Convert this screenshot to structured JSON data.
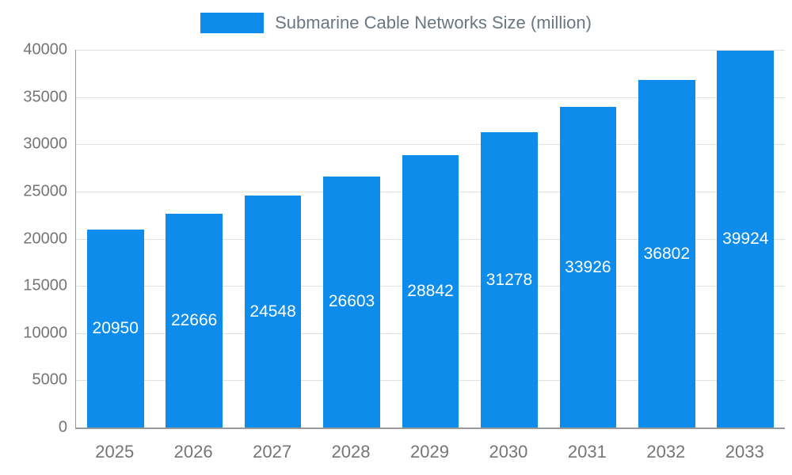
{
  "chart_data": {
    "type": "bar",
    "title": "Submarine Cable Networks Size (million)",
    "categories": [
      "2025",
      "2026",
      "2027",
      "2028",
      "2029",
      "2030",
      "2031",
      "2032",
      "2033"
    ],
    "values": [
      20950,
      22666,
      24548,
      26603,
      28842,
      31278,
      33926,
      36802,
      39924
    ],
    "series": [
      {
        "name": "Submarine Cable Networks Size (million)",
        "values": [
          20950,
          22666,
          24548,
          26603,
          28842,
          31278,
          33926,
          36802,
          39924
        ]
      }
    ],
    "xlabel": "",
    "ylabel": "",
    "ylim": [
      0,
      40000
    ],
    "yticks": [
      0,
      5000,
      10000,
      15000,
      20000,
      25000,
      30000,
      35000,
      40000
    ],
    "grid": "horizontal",
    "legend_position": "top-center",
    "value_labels": "inside-center",
    "colors": {
      "bar": "#0d8ceb",
      "grid": "#e0e0e0",
      "axis_line": "#999999",
      "axis_text": "#757575",
      "legend_text": "#6b7684",
      "value_label": "#ffffff",
      "background": "#ffffff"
    }
  }
}
